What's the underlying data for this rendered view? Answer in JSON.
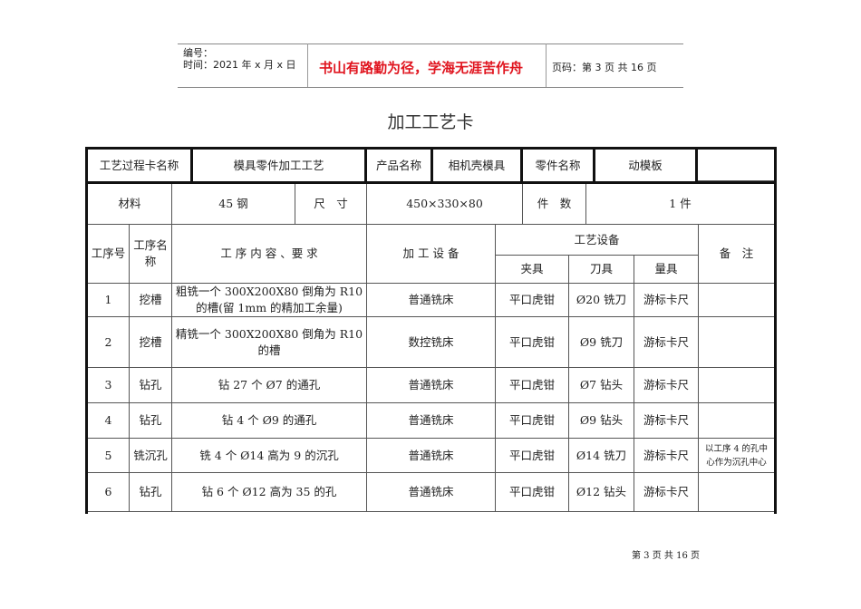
{
  "header": {
    "number_label": "编号：",
    "date_label": "时间：2021 年 x 月 x 日",
    "motto": "书山有路勤为径，学海无涯苦作舟",
    "page_info": "页码：第 3 页  共 16 页"
  },
  "title": "加工工艺卡",
  "card": {
    "card_name_label": "工艺过程卡名称",
    "card_name": "模具零件加工工艺",
    "product_label": "产品名称",
    "product": "相机壳模具",
    "part_label": "零件名称",
    "part": "动模板",
    "material_label": "材料",
    "material": "45 钢",
    "size_label": "尺　寸",
    "size": "450×330×80",
    "qty_label": "件　数",
    "qty": "1 件"
  },
  "columns": {
    "step_no": "工序号",
    "step_name": "工序名称",
    "content": "工 序 内 容 、要 求",
    "machine": "加 工 设 备",
    "equipment": "工艺设备",
    "fixture": "夹具",
    "tool": "刀具",
    "gauge": "量具",
    "remark": "备　注"
  },
  "rows": [
    {
      "no": "1",
      "name": "挖槽",
      "content": "粗铣一个 300X200X80 倒角为 R10 的槽(留 1mm 的精加工余量)",
      "machine": "普通铣床",
      "fixture": "平口虎钳",
      "tool": "Ø20 铣刀",
      "gauge": "游标卡尺",
      "remark": ""
    },
    {
      "no": "2",
      "name": "挖槽",
      "content": "精铣一个 300X200X80 倒角为 R10 的槽",
      "machine": "数控铣床",
      "fixture": "平口虎钳",
      "tool": "Ø9 铣刀",
      "gauge": "游标卡尺",
      "remark": ""
    },
    {
      "no": "3",
      "name": "钻孔",
      "content": "钻 27 个 Ø7 的通孔",
      "machine": "普通铣床",
      "fixture": "平口虎钳",
      "tool": "Ø7 钻头",
      "gauge": "游标卡尺",
      "remark": ""
    },
    {
      "no": "4",
      "name": "钻孔",
      "content": "钻 4 个 Ø9 的通孔",
      "machine": "普通铣床",
      "fixture": "平口虎钳",
      "tool": "Ø9 钻头",
      "gauge": "游标卡尺",
      "remark": ""
    },
    {
      "no": "5",
      "name": "铣沉孔",
      "content": "铣 4 个 Ø14 高为 9 的沉孔",
      "machine": "普通铣床",
      "fixture": "平口虎钳",
      "tool": "Ø14 铣刀",
      "gauge": "游标卡尺",
      "remark": "以工序 4 的孔中心作为沉孔中心"
    },
    {
      "no": "6",
      "name": "钻孔",
      "content": "钻 6 个 Ø12 高为 35 的孔",
      "machine": "普通铣床",
      "fixture": "平口虎钳",
      "tool": "Ø12 钻头",
      "gauge": "游标卡尺",
      "remark": ""
    }
  ],
  "footer": "第 3 页 共 16 页"
}
